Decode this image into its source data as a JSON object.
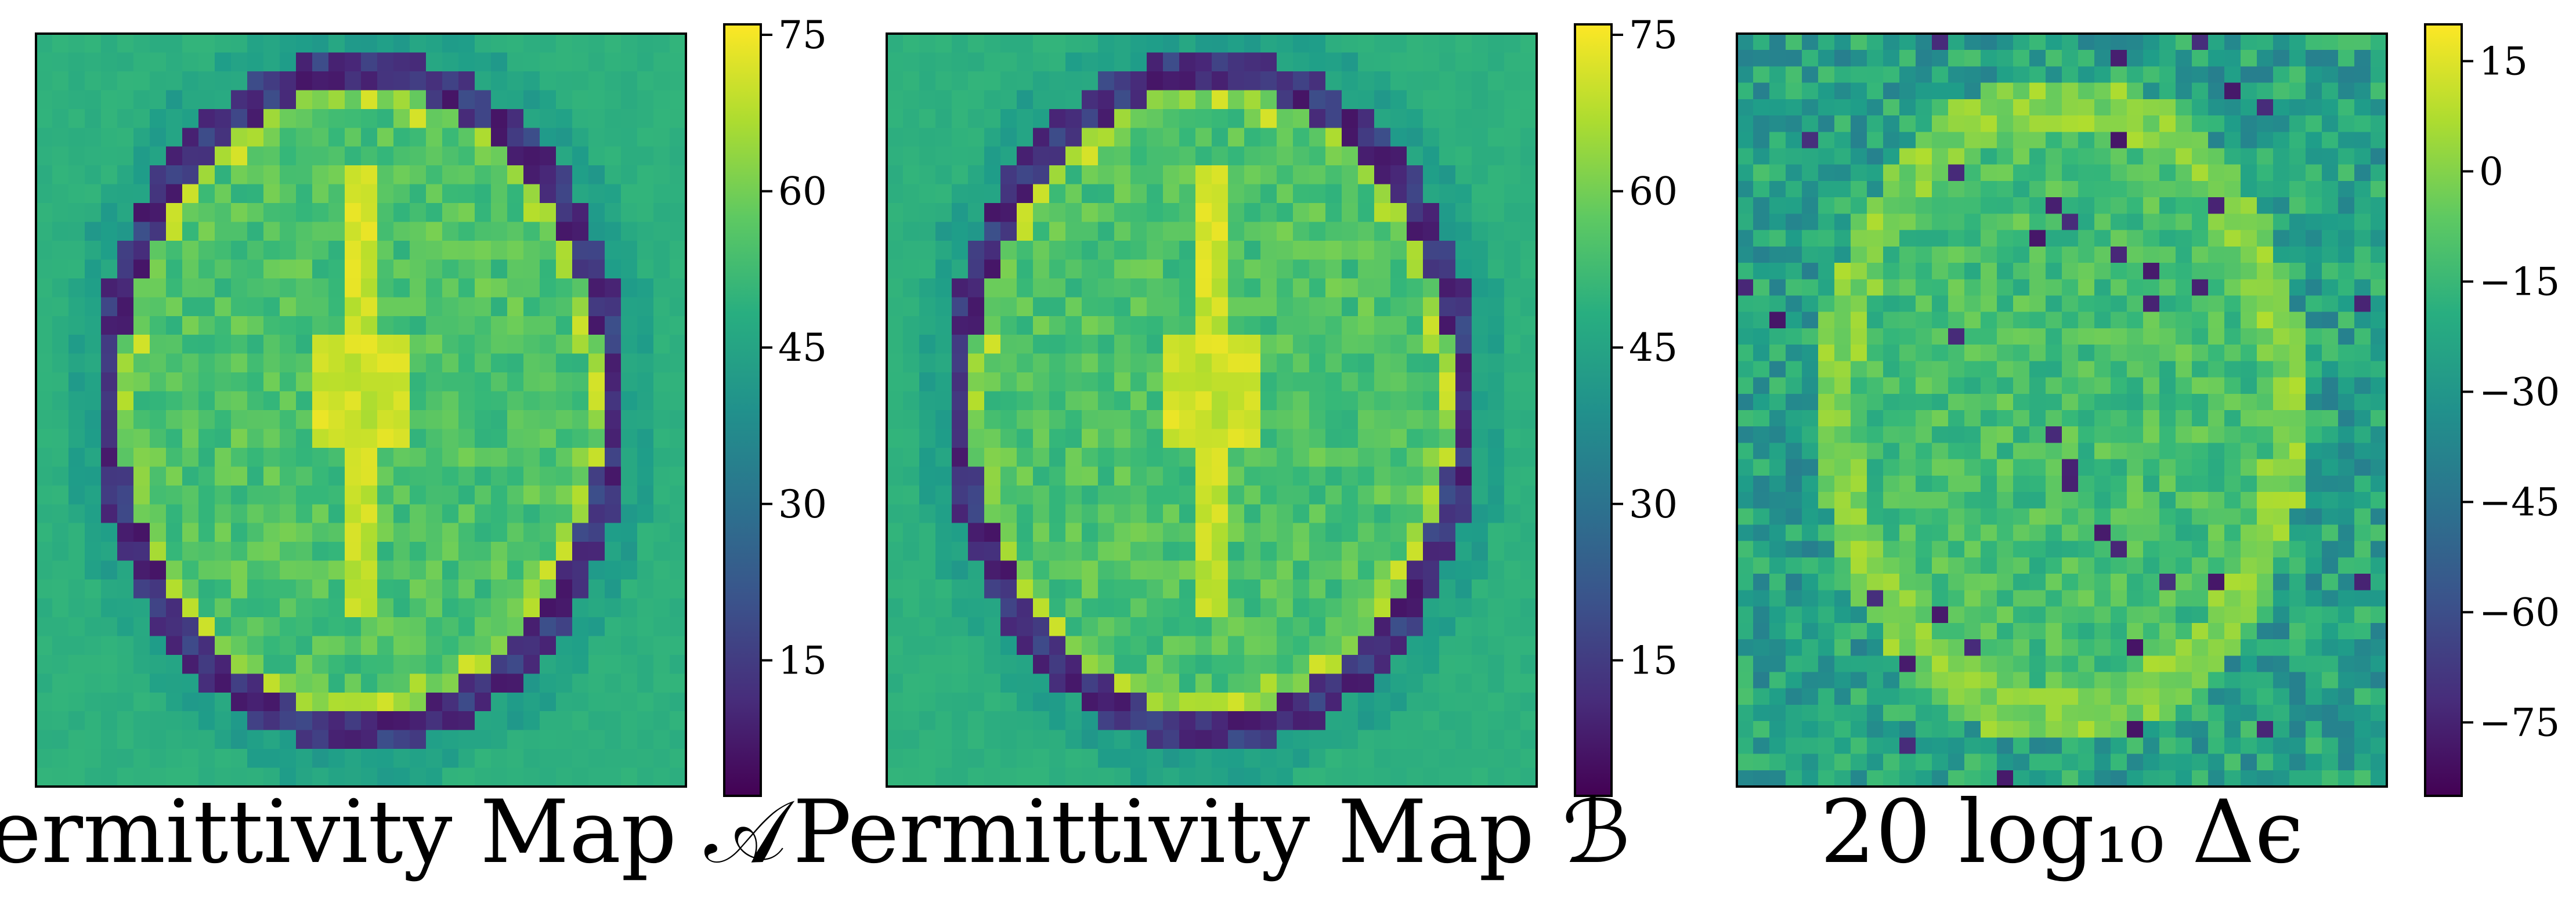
{
  "chart_data": [
    {
      "type": "heatmap",
      "title": "Permittivity Map 𝒜",
      "grid_size": [
        40,
        40
      ],
      "colormap": "viridis",
      "colorbar": {
        "min": 2,
        "max": 76,
        "ticks": [
          15,
          30,
          45,
          60,
          75
        ],
        "tick_labels": [
          "15",
          "30",
          "45",
          "60",
          "75"
        ]
      },
      "description_values": {
        "background": 49,
        "skull_ring": 6,
        "brain_edge_bright": 72,
        "brain_tissue": 55,
        "ventricles": 74
      }
    },
    {
      "type": "heatmap",
      "title": "Permittivity Map ℬ",
      "grid_size": [
        40,
        40
      ],
      "colormap": "viridis",
      "colorbar": {
        "min": 2,
        "max": 76,
        "ticks": [
          15,
          30,
          45,
          60,
          75
        ],
        "tick_labels": [
          "15",
          "30",
          "45",
          "60",
          "75"
        ]
      },
      "description_values": {
        "background": 49,
        "skull_ring": 6,
        "brain_edge_bright": 72,
        "brain_tissue": 55,
        "ventricles": 74
      }
    },
    {
      "type": "heatmap",
      "title": "20 log₁₀ Δϵ",
      "grid_size": [
        40,
        46
      ],
      "colormap": "viridis",
      "colorbar": {
        "min": -85,
        "max": 20,
        "ticks": [
          15,
          0,
          -15,
          -30,
          -45,
          -60,
          -75
        ],
        "tick_labels": [
          "15",
          "0",
          "−15",
          "−30",
          "−45",
          "−60",
          "−75"
        ]
      },
      "description_values": {
        "background_mean": -25,
        "ring_edge": 8,
        "interior": -12
      }
    }
  ]
}
